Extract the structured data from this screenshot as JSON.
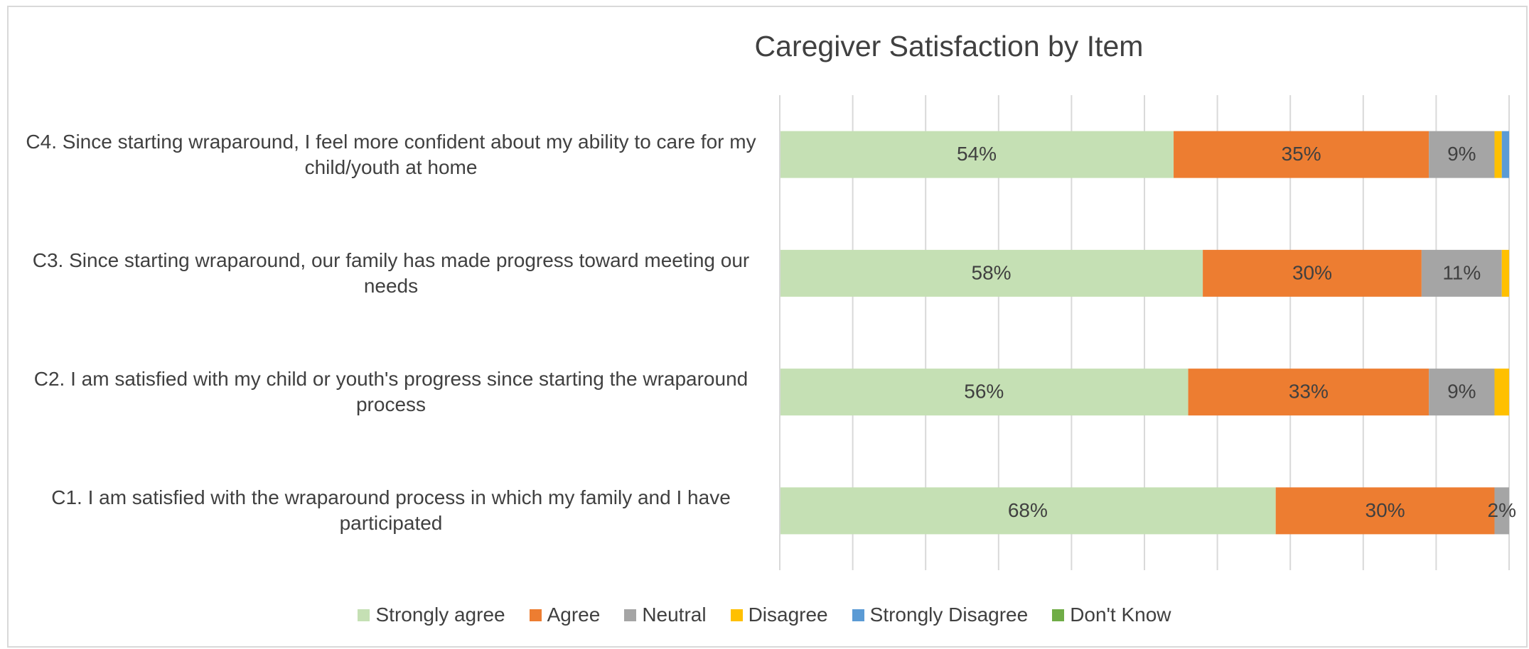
{
  "chart_data": {
    "type": "stacked_barh",
    "title": "Caregiver Satisfaction by Item",
    "categories": [
      "C4. Since starting wraparound, I feel more confident about my ability to care for my child/youth at home",
      "C3. Since starting wraparound, our family has made progress toward meeting our needs",
      "C2. I am satisfied with my child or youth's progress since starting the wraparound process",
      "C1. I am satisfied with the wraparound process in which my family and I have participated"
    ],
    "series": [
      {
        "name": "Strongly agree",
        "color": "#c5e0b4",
        "values": [
          54,
          58,
          56,
          68
        ],
        "value_labels": [
          "54%",
          "58%",
          "56%",
          "68%"
        ]
      },
      {
        "name": "Agree",
        "color": "#ed7d31",
        "values": [
          35,
          30,
          33,
          30
        ],
        "value_labels": [
          "35%",
          "30%",
          "33%",
          "30%"
        ]
      },
      {
        "name": "Neutral",
        "color": "#a5a5a5",
        "values": [
          9,
          11,
          9,
          2
        ],
        "value_labels": [
          "9%",
          "11%",
          "9%",
          "2%"
        ]
      },
      {
        "name": "Disagree",
        "color": "#ffc000",
        "values": [
          1,
          1,
          2,
          0
        ],
        "value_labels": [
          null,
          null,
          null,
          null
        ]
      },
      {
        "name": "Strongly Disagree",
        "color": "#5b9bd5",
        "values": [
          1,
          0,
          0,
          0
        ],
        "value_labels": [
          null,
          null,
          null,
          null
        ]
      },
      {
        "name": "Don't Know",
        "color": "#70ad47",
        "values": [
          0,
          0,
          0,
          0
        ],
        "value_labels": [
          null,
          null,
          null,
          null
        ]
      }
    ],
    "xlim": [
      0,
      100
    ],
    "xticks": [
      0,
      10,
      20,
      30,
      40,
      50,
      60,
      70,
      80,
      90,
      100
    ],
    "grid": true,
    "legend": "bottom"
  }
}
